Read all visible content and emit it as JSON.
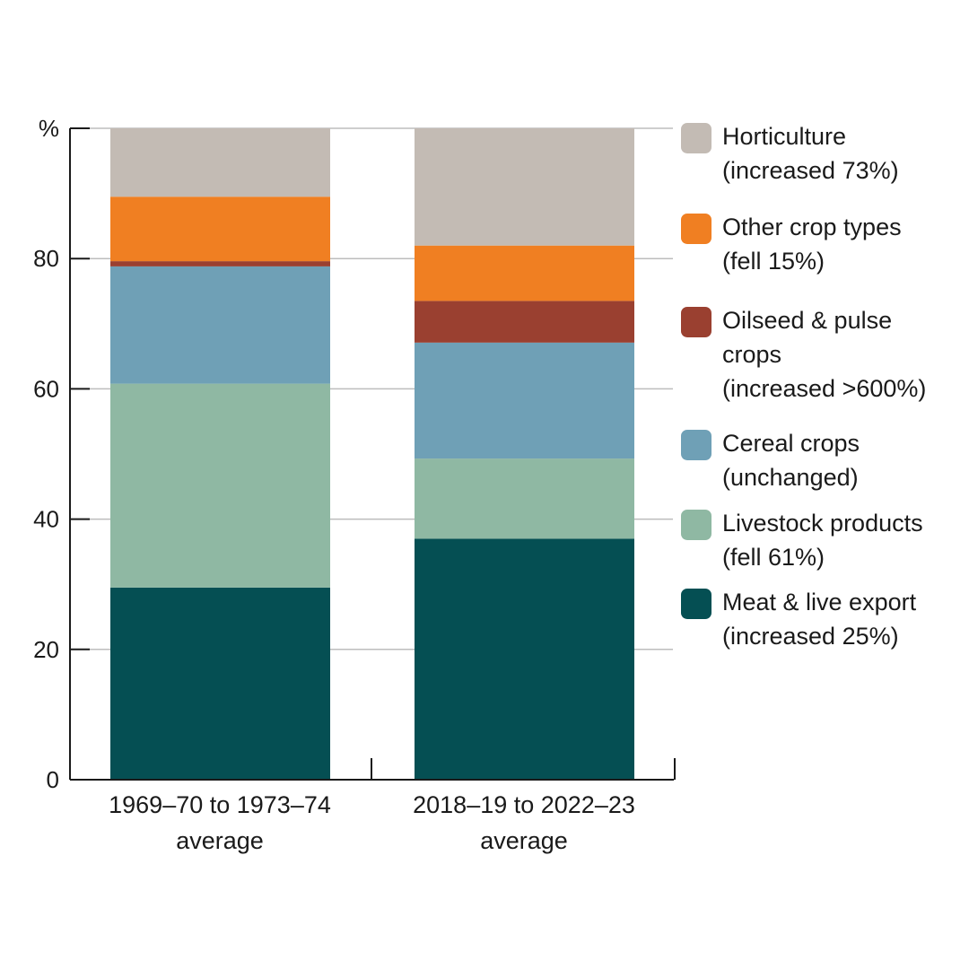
{
  "chart_data": {
    "type": "bar",
    "stacked": true,
    "unit_label": "%",
    "ylim": [
      0,
      100
    ],
    "yticks": [
      0,
      20,
      40,
      60,
      80
    ],
    "grid": true,
    "legend_position": "right",
    "categories": [
      [
        "1969–70 to 1973–74",
        "average"
      ],
      [
        "2018–19 to 2022–23",
        "average"
      ]
    ],
    "series": [
      {
        "name": "Meat & live export",
        "note": "(increased 25%)",
        "color": "#054f53",
        "values": [
          29.5,
          37.0
        ]
      },
      {
        "name": "Livestock products",
        "note": "(fell 61%)",
        "color": "#8fb8a3",
        "values": [
          31.3,
          12.3
        ]
      },
      {
        "name": "Cereal crops",
        "note": "(unchanged)",
        "color": "#6fa0b6",
        "values": [
          18.0,
          17.8
        ]
      },
      {
        "name": "Oilseed & pulse crops",
        "note": "(increased >600%)",
        "color": "#9a4030",
        "values": [
          0.8,
          6.4
        ]
      },
      {
        "name": "Other crop types",
        "note": "(fell 15%)",
        "color": "#f07f22",
        "values": [
          9.9,
          8.5
        ]
      },
      {
        "name": "Horticulture",
        "note": "(increased 73%)",
        "color": "#c3bbb4",
        "values": [
          10.5,
          18.0
        ]
      }
    ],
    "legend": [
      {
        "lines": [
          "Horticulture",
          "(increased 73%)"
        ],
        "color": "#c3bbb4"
      },
      {
        "lines": [
          "Other crop types",
          "(fell 15%)"
        ],
        "color": "#f07f22"
      },
      {
        "lines": [
          "Oilseed & pulse",
          "crops",
          "(increased >600%)"
        ],
        "color": "#9a4030"
      },
      {
        "lines": [
          "Cereal crops",
          "(unchanged)"
        ],
        "color": "#6fa0b6"
      },
      {
        "lines": [
          "Livestock products",
          "(fell 61%)"
        ],
        "color": "#8fb8a3"
      },
      {
        "lines": [
          "Meat & live export",
          "(increased 25%)"
        ],
        "color": "#054f53"
      }
    ]
  }
}
